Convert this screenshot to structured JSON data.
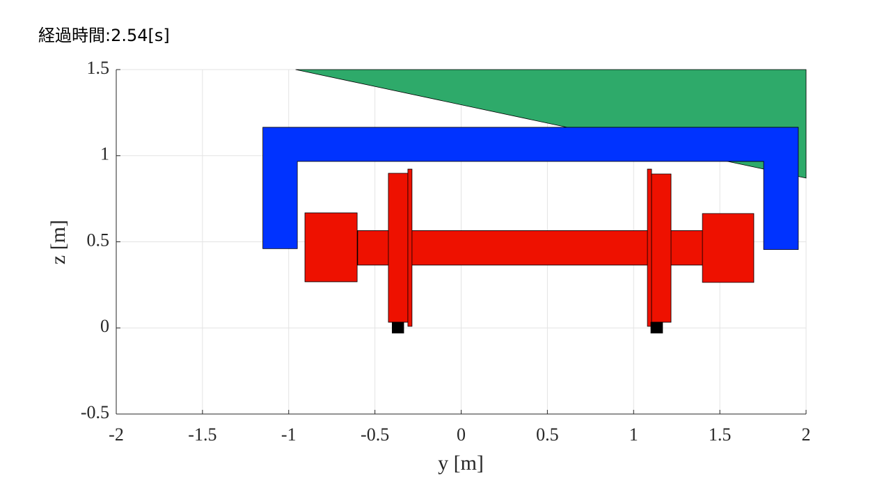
{
  "chart_data": {
    "type": "patch",
    "title": "経過時間:2.54[s]",
    "xlabel": "y [m]",
    "ylabel": "z [m]",
    "xlim": [
      -2,
      2
    ],
    "ylim": [
      -0.5,
      1.5
    ],
    "xticks": [
      -2,
      -1.5,
      -1,
      -0.5,
      0,
      0.5,
      1,
      1.5,
      2
    ],
    "yticks": [
      -0.5,
      0,
      0.5,
      1,
      1.5
    ],
    "grid": true,
    "shapes": [
      {
        "color": "#2eaa6a",
        "x": [
          -0.96,
          2,
          2
        ],
        "y": [
          1.5,
          1.5,
          0.87
        ]
      },
      {
        "color": "#0033ff",
        "x": [
          -1.15,
          -1.15,
          1.955,
          1.955,
          1.754,
          1.754,
          -0.95,
          -0.95
        ],
        "y": [
          0.46,
          1.165,
          1.165,
          0.455,
          0.455,
          0.967,
          0.967,
          0.46
        ]
      },
      {
        "color": "#ee1100",
        "x": [
          -0.6,
          1.4,
          1.4,
          -0.6
        ],
        "y": [
          0.365,
          0.365,
          0.565,
          0.565
        ]
      },
      {
        "color": "#ee1100",
        "x": [
          -0.906,
          -0.603,
          -0.603,
          -0.906
        ],
        "y": [
          0.268,
          0.268,
          0.668,
          0.668
        ]
      },
      {
        "color": "#ee1100",
        "x": [
          1.399,
          1.697,
          1.697,
          1.399
        ],
        "y": [
          0.264,
          0.264,
          0.664,
          0.664
        ]
      },
      {
        "color": "#ee1100",
        "x": [
          -0.422,
          -0.309,
          -0.309,
          -0.422
        ],
        "y": [
          0.033,
          0.033,
          0.898,
          0.898
        ]
      },
      {
        "color": "#ee1100",
        "x": [
          -0.309,
          -0.285,
          -0.285,
          -0.309
        ],
        "y": [
          0.009,
          0.009,
          0.922,
          0.922
        ]
      },
      {
        "color": "#ee1100",
        "x": [
          1.08,
          1.104,
          1.104,
          1.08
        ],
        "y": [
          0.009,
          0.009,
          0.922,
          0.922
        ]
      },
      {
        "color": "#ee1100",
        "x": [
          1.104,
          1.217,
          1.217,
          1.104
        ],
        "y": [
          0.033,
          0.033,
          0.894,
          0.894
        ]
      },
      {
        "color": "#000000",
        "x": [
          -0.4,
          -0.333,
          -0.333,
          -0.4
        ],
        "y": [
          -0.03,
          -0.03,
          0.033,
          0.033
        ]
      },
      {
        "color": "#000000",
        "x": [
          1.1,
          1.168,
          1.168,
          1.1
        ],
        "y": [
          -0.03,
          -0.03,
          0.033,
          0.033
        ]
      }
    ]
  }
}
